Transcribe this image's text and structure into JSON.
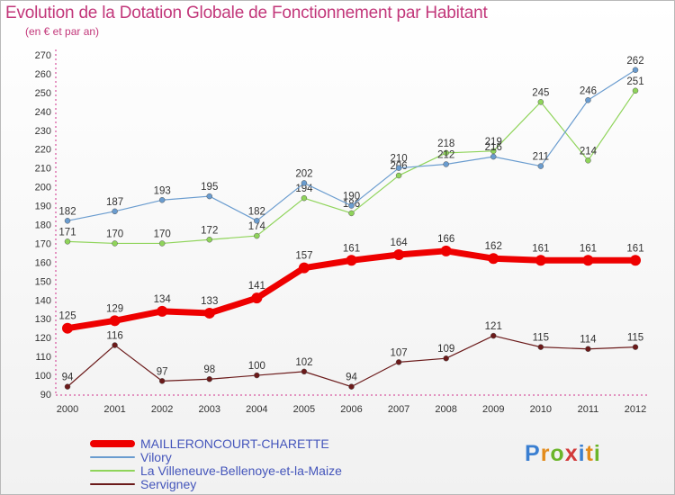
{
  "header": {
    "title": "Evolution de la Dotation Globale de Fonctionnement par Habitant",
    "subtitle": "(en € et par an)"
  },
  "logo": {
    "text": "Proxiti",
    "colors": [
      "#3a7fd1",
      "#e38b1b",
      "#6bb52a",
      "#d23a3a"
    ]
  },
  "chart_data": {
    "type": "line",
    "title": "Evolution de la Dotation Globale de Fonctionnement par Habitant",
    "subtitle": "(en € et par an)",
    "x": [
      "2000",
      "2001",
      "2002",
      "2003",
      "2004",
      "2005",
      "2006",
      "2007",
      "2008",
      "2009",
      "2010",
      "2011",
      "2012"
    ],
    "ylim": [
      90,
      270
    ],
    "yticks": [
      90,
      100,
      110,
      120,
      130,
      140,
      150,
      160,
      170,
      180,
      190,
      200,
      210,
      220,
      230,
      240,
      250,
      260,
      270
    ],
    "grid": false,
    "legend_position": "bottom-left",
    "series": [
      {
        "name": "Servigney",
        "color": "#6b1a1a",
        "width": 1.2,
        "values": [
          94,
          116,
          97,
          98,
          100,
          102,
          94,
          107,
          109,
          121,
          115,
          114,
          115
        ]
      },
      {
        "name": "La Villeneuve-Bellenoye-et-la-Maize",
        "color": "#8fd45a",
        "width": 1.2,
        "values": [
          171,
          170,
          170,
          172,
          174,
          194,
          186,
          206,
          218,
          219,
          245,
          214,
          251
        ]
      },
      {
        "name": "Vilory",
        "color": "#6a9ccf",
        "width": 1.2,
        "values": [
          182,
          187,
          193,
          195,
          182,
          202,
          190,
          210,
          212,
          216,
          211,
          246,
          262
        ]
      },
      {
        "name": "MAILLERONCOURT-CHARETTE",
        "color": "#ee0000",
        "width": 7,
        "values": [
          125,
          129,
          134,
          133,
          141,
          157,
          161,
          164,
          166,
          162,
          161,
          161,
          161
        ]
      }
    ],
    "legend_order": [
      "MAILLERONCOURT-CHARETTE",
      "Vilory",
      "La Villeneuve-Bellenoye-et-la-Maize",
      "Servigney"
    ]
  }
}
